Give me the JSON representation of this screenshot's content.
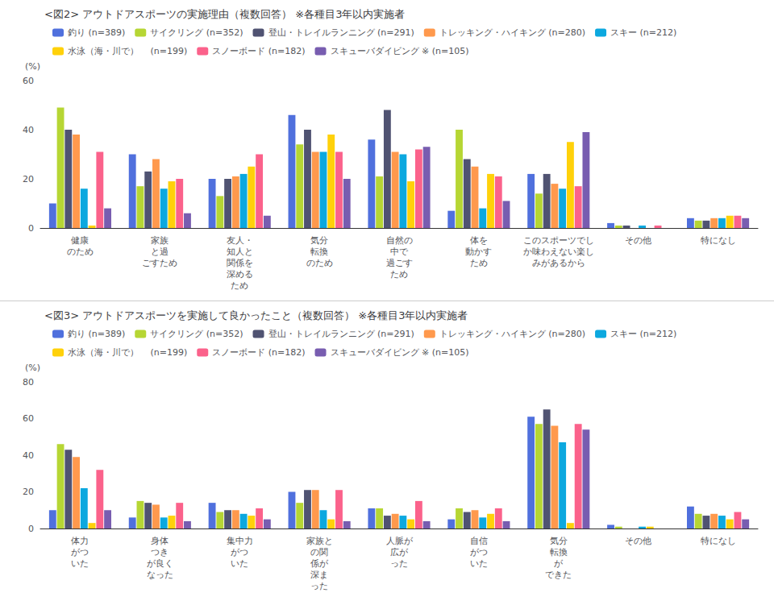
{
  "chart_data": [
    {
      "type": "bar",
      "title": "<図2> アウトドアスポーツの実施理由（複数回答） ※各種目3年以内実施者",
      "ylabel": "(%)",
      "categories": [
        "健康\nのため",
        "家族\nと過\nごすため",
        "友人・\n知人と\n関係を\n深める\nため",
        "気分\n転換\nのため",
        "自然の\n中で\n過ごす\nため",
        "体を\n動かす\nため",
        "このスポーツでしか味わえない楽しみがあるから",
        "その他",
        "特になし"
      ],
      "series": [
        {
          "name": "釣り (n=389)",
          "values": [
            10,
            30,
            20,
            46,
            36,
            7,
            22,
            2,
            4
          ]
        },
        {
          "name": "サイクリング (n=352)",
          "values": [
            49,
            17,
            13,
            34,
            21,
            40,
            14,
            1,
            3
          ]
        },
        {
          "name": "登山・トレイルランニング (n=291)",
          "values": [
            40,
            23,
            20,
            40,
            48,
            28,
            22,
            1,
            3
          ]
        },
        {
          "name": "トレッキング・ハイキング (n=280)",
          "values": [
            38,
            28,
            21,
            31,
            31,
            25,
            18,
            0,
            4
          ]
        },
        {
          "name": "スキー (n=212)",
          "values": [
            16,
            16,
            22,
            31,
            30,
            8,
            16,
            1,
            4
          ]
        },
        {
          "name": "水泳（海・川で） 　(n=199)",
          "values": [
            1,
            19,
            25,
            38,
            19,
            22,
            35,
            0,
            5
          ]
        },
        {
          "name": "スノーボード (n=182)",
          "values": [
            31,
            20,
            30,
            31,
            32,
            21,
            17,
            1,
            5
          ]
        },
        {
          "name": "スキューバダイビング ※ (n=105)",
          "values": [
            8,
            6,
            5,
            20,
            33,
            11,
            39,
            0,
            4
          ]
        }
      ],
      "ylim": [
        0,
        60
      ],
      "yticks": [
        0,
        20,
        40,
        60
      ],
      "grid": false,
      "legend": "top"
    },
    {
      "type": "bar",
      "title": "<図3> アウトドアスポーツを実施して良かったこと（複数回答） ※各種目3年以内実施者",
      "ylabel": "(%)",
      "categories": [
        "体力\nがつ\nいた",
        "身体\nつき\nが良く\nなった",
        "集中力\nがつ\nいた",
        "家族と\nの関\n係が\n深ま\nった",
        "人脈が\n広が\nった",
        "自信\nがつ\nいた",
        "気分\n転換\nが\nできた",
        "その他",
        "特になし"
      ],
      "series": [
        {
          "name": "釣り (n=389)",
          "values": [
            10,
            6,
            14,
            20,
            11,
            5,
            61,
            2,
            12
          ]
        },
        {
          "name": "サイクリング (n=352)",
          "values": [
            46,
            15,
            9,
            14,
            11,
            11,
            57,
            1,
            8
          ]
        },
        {
          "name": "登山・トレイルランニング (n=291)",
          "values": [
            43,
            14,
            10,
            21,
            7,
            9,
            65,
            0,
            7
          ]
        },
        {
          "name": "トレッキング・ハイキング (n=280)",
          "values": [
            39,
            13,
            10,
            21,
            8,
            10,
            56,
            0,
            8
          ]
        },
        {
          "name": "スキー (n=212)",
          "values": [
            22,
            6,
            8,
            10,
            7,
            6,
            47,
            1,
            7
          ]
        },
        {
          "name": "水泳（海・川で） 　(n=199)",
          "values": [
            3,
            7,
            7,
            5,
            5,
            8,
            3,
            1,
            5
          ]
        },
        {
          "name": "スノーボード (n=182)",
          "values": [
            32,
            14,
            11,
            21,
            15,
            11,
            57,
            0,
            9
          ]
        },
        {
          "name": "スキューバダイビング ※ (n=105)",
          "values": [
            10,
            4,
            5,
            4,
            4,
            4,
            54,
            0,
            5
          ]
        }
      ],
      "ylim": [
        0,
        80
      ],
      "yticks": [
        0,
        20,
        40,
        60,
        80
      ],
      "grid": false,
      "legend": "top"
    }
  ]
}
